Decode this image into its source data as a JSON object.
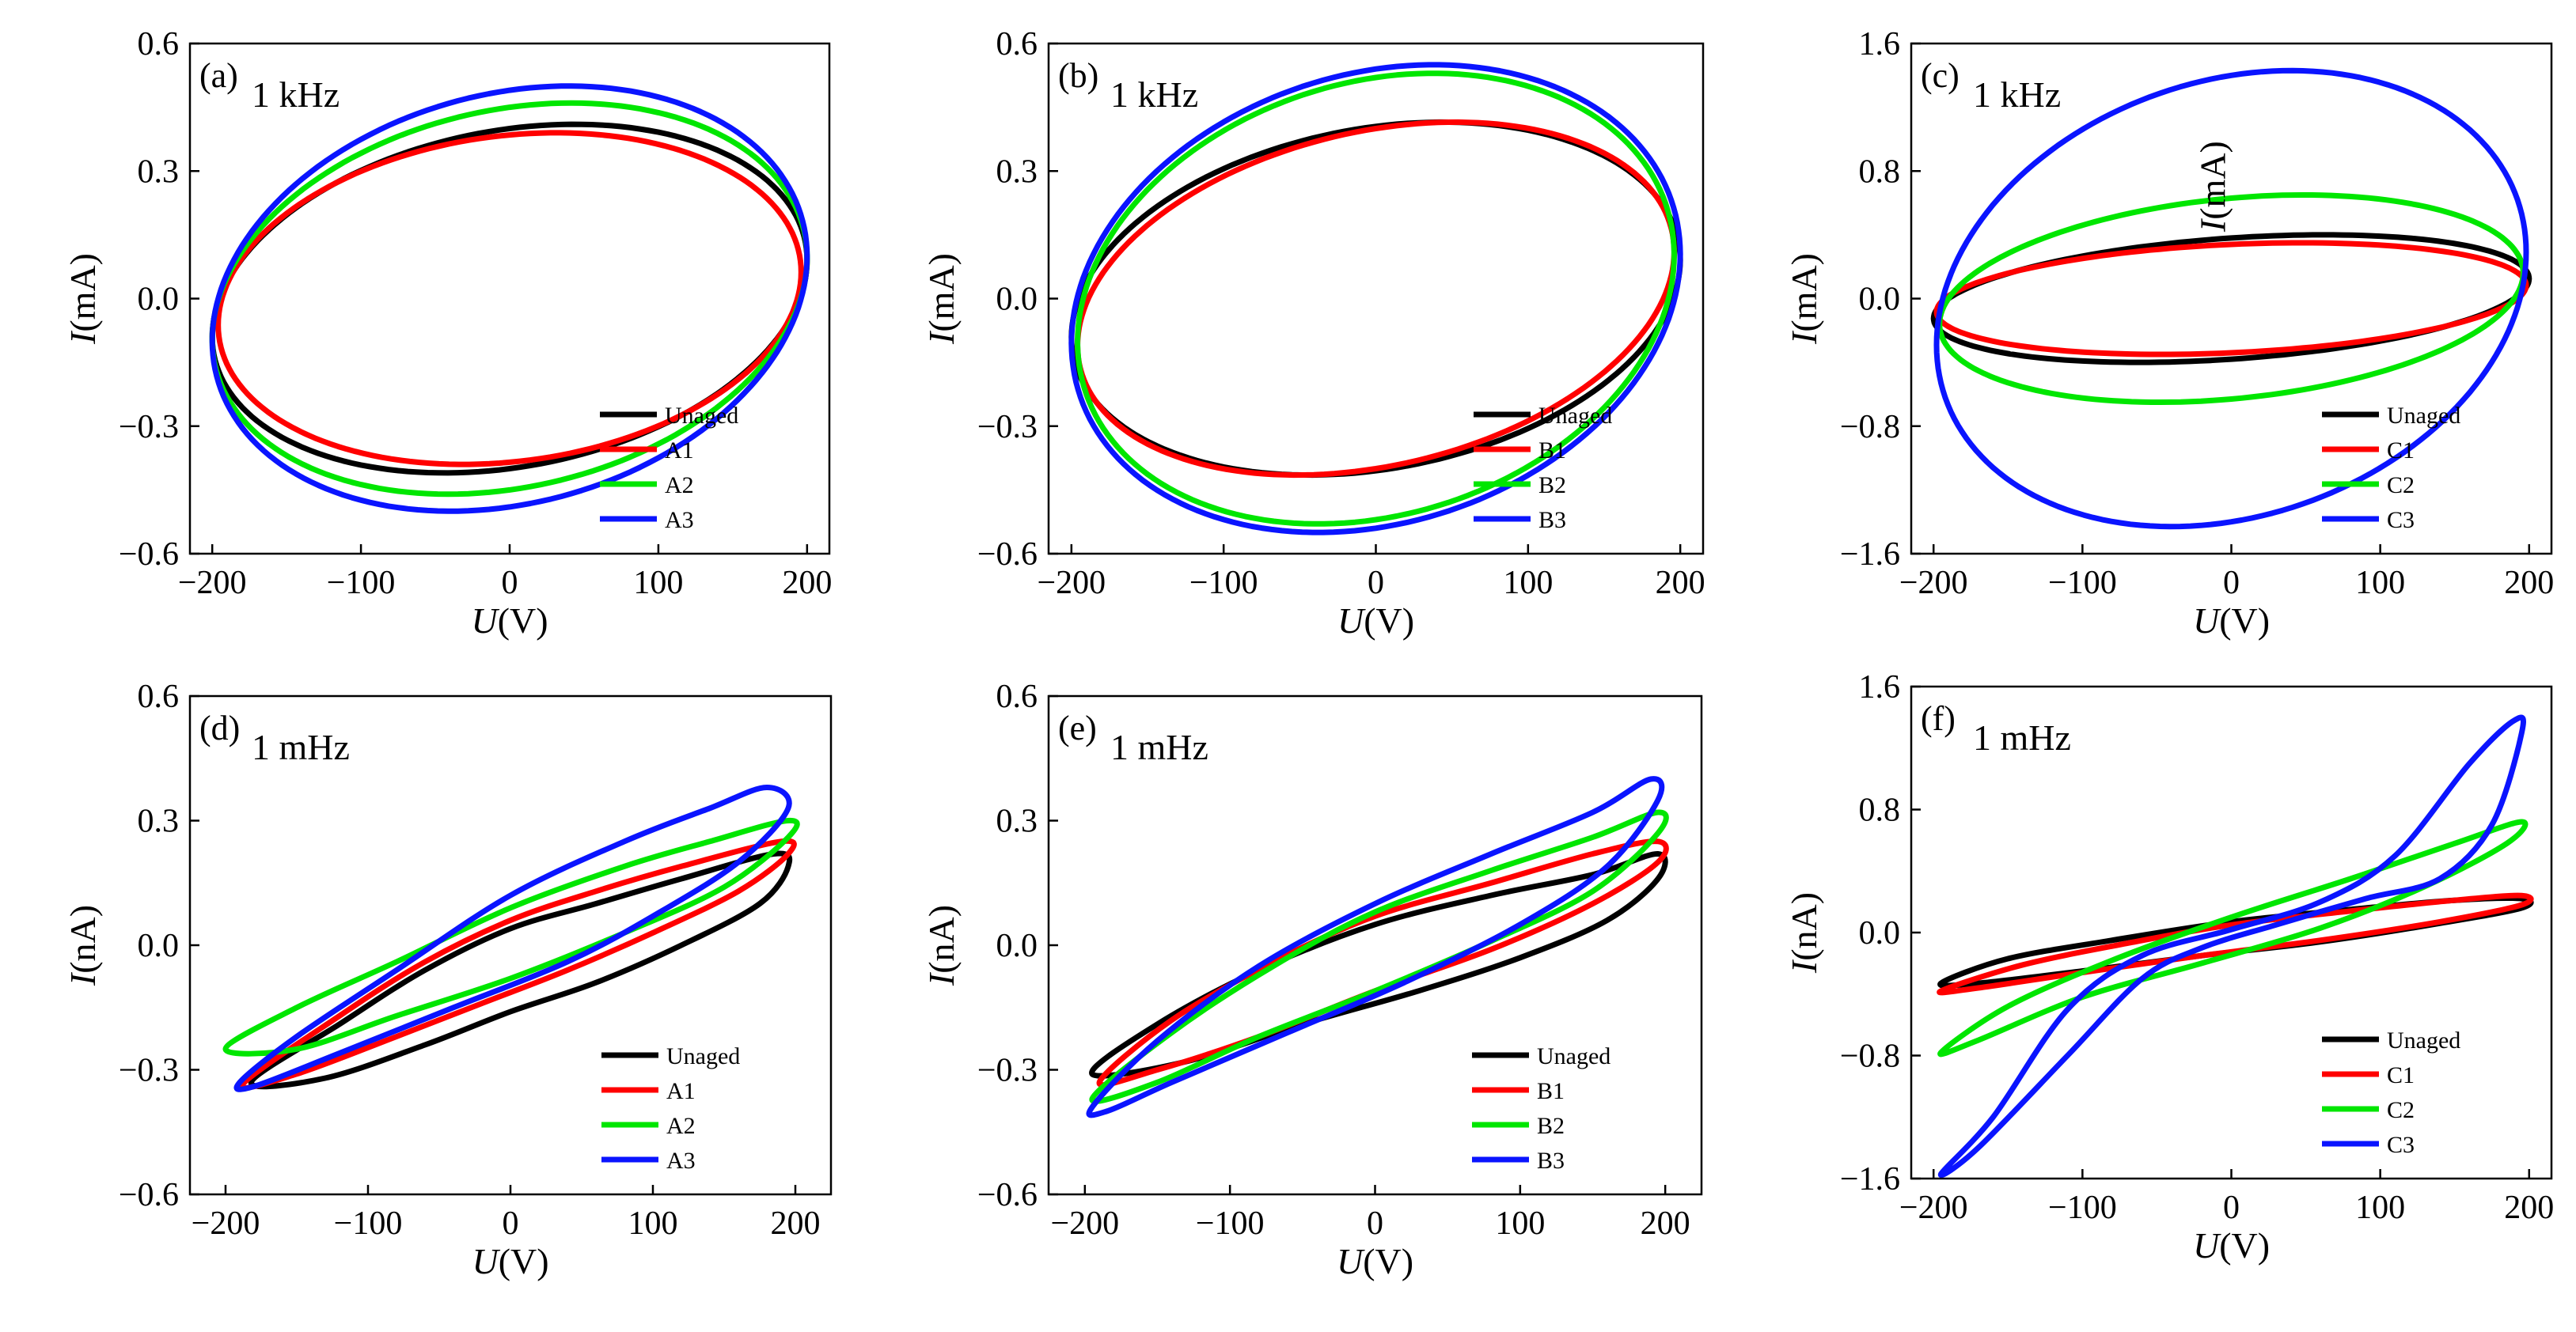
{
  "colors": {
    "Unaged": "#000000",
    "aged1": "#ff0000",
    "aged2": "#00e600",
    "aged3": "#0a14ff"
  },
  "chart_data": [
    {
      "type": "line",
      "panel": "(a)",
      "freq": "1 kHz",
      "xlabel": {
        "var": "U",
        "unit": "(V)"
      },
      "ylabel": {
        "var": "I",
        "unit": "(mA)"
      },
      "xlim": [
        -215,
        215
      ],
      "ylim": [
        -0.6,
        0.6
      ],
      "xticks": [
        -200,
        -100,
        0,
        100,
        200
      ],
      "yticks": [
        0.6,
        0.3,
        0.0,
        -0.3,
        -0.6
      ],
      "xtick_labels": [
        "−200",
        "−100",
        "0",
        "100",
        "200"
      ],
      "ytick_labels": [
        "0.6",
        "0.3",
        "0.0",
        "−0.3",
        "−0.6"
      ],
      "shape": "ellipse",
      "series": [
        {
          "name": "Unaged",
          "amp_v": 200,
          "peak": 0.41,
          "at_zero": 0.4,
          "color_key": "Unaged"
        },
        {
          "name": "A1",
          "amp_v": 196,
          "peak": 0.39,
          "at_zero": 0.385,
          "color_key": "aged1"
        },
        {
          "name": "A2",
          "amp_v": 200,
          "peak": 0.46,
          "at_zero": 0.45,
          "color_key": "aged2"
        },
        {
          "name": "A3",
          "amp_v": 200,
          "peak": 0.5,
          "at_zero": 0.49,
          "color_key": "aged3"
        }
      ]
    },
    {
      "type": "line",
      "panel": "(b)",
      "freq": "1 kHz",
      "xlabel": {
        "var": "U",
        "unit": "(V)"
      },
      "ylabel": {
        "var": "I",
        "unit": "(mA)"
      },
      "xlim": [
        -215,
        215
      ],
      "ylim": [
        -0.6,
        0.6
      ],
      "xticks": [
        -200,
        -100,
        0,
        100,
        200
      ],
      "yticks": [
        0.6,
        0.3,
        0.0,
        -0.3,
        -0.6
      ],
      "xtick_labels": [
        "−200",
        "−100",
        "0",
        "100",
        "200"
      ],
      "ytick_labels": [
        "0.6",
        "0.3",
        "0.0",
        "−0.3",
        "−0.6"
      ],
      "shape": "ellipse",
      "series": [
        {
          "name": "Unaged",
          "amp_v": 200,
          "peak": 0.415,
          "at_zero": 0.405,
          "color_key": "Unaged"
        },
        {
          "name": "B1",
          "amp_v": 196,
          "peak": 0.415,
          "at_zero": 0.4,
          "color_key": "aged1"
        },
        {
          "name": "B2",
          "amp_v": 196,
          "peak": 0.53,
          "at_zero": 0.52,
          "color_key": "aged2"
        },
        {
          "name": "B3",
          "amp_v": 200,
          "peak": 0.55,
          "at_zero": 0.54,
          "color_key": "aged3"
        }
      ]
    },
    {
      "type": "line",
      "panel": "(c)",
      "freq": "1 kHz",
      "xlabel": {
        "var": "U",
        "unit": "(V)"
      },
      "ylabel": {
        "var": "I",
        "unit": "(mA)"
      },
      "inner_label": {
        "var": "I",
        "unit": "(mA)"
      },
      "xlim": [
        -215,
        215
      ],
      "ylim": [
        -1.6,
        1.6
      ],
      "xticks": [
        -200,
        -100,
        0,
        100,
        200
      ],
      "yticks": [
        1.6,
        0.8,
        0.0,
        -0.8,
        -1.6
      ],
      "xtick_labels": [
        "−200",
        "−100",
        "0",
        "100",
        "200"
      ],
      "ytick_labels": [
        "1.6",
        "0.8",
        "0.0",
        "−0.8",
        "−1.6"
      ],
      "shape": "ellipse",
      "series": [
        {
          "name": "Unaged",
          "amp_v": 200,
          "peak": 0.4,
          "at_zero": 0.38,
          "color_key": "Unaged"
        },
        {
          "name": "C1",
          "amp_v": 198,
          "peak": 0.35,
          "at_zero": 0.34,
          "color_key": "aged1"
        },
        {
          "name": "C2",
          "amp_v": 196,
          "peak": 0.65,
          "at_zero": 0.63,
          "color_key": "aged2"
        },
        {
          "name": "C3",
          "amp_v": 198,
          "peak": 1.43,
          "at_zero": 1.4,
          "color_key": "aged3"
        }
      ]
    },
    {
      "type": "line",
      "panel": "(d)",
      "freq": "1 mHz",
      "xlabel": {
        "var": "U",
        "unit": "(V)"
      },
      "ylabel": {
        "var": "I",
        "unit": "(nA)"
      },
      "xlim": [
        -225,
        225
      ],
      "ylim": [
        -0.6,
        0.6
      ],
      "xticks": [
        -200,
        -100,
        0,
        100,
        200
      ],
      "yticks": [
        0.6,
        0.3,
        0.0,
        -0.3,
        -0.6
      ],
      "xtick_labels": [
        "−200",
        "−100",
        "0",
        "100",
        "200"
      ],
      "ytick_labels": [
        "0.6",
        "0.3",
        "0.0",
        "−0.3",
        "−0.6"
      ],
      "shape": "loop",
      "series": [
        {
          "name": "Unaged",
          "points": [
            [
              -182,
              -0.33
            ],
            [
              -120,
              -0.19
            ],
            [
              -60,
              -0.06
            ],
            [
              0,
              0.04
            ],
            [
              60,
              0.1
            ],
            [
              120,
              0.16
            ],
            [
              185,
              0.22
            ],
            [
              195,
              0.19
            ],
            [
              175,
              0.1
            ],
            [
              120,
              0.0
            ],
            [
              60,
              -0.09
            ],
            [
              0,
              -0.16
            ],
            [
              -60,
              -0.24
            ],
            [
              -130,
              -0.32
            ],
            [
              -182,
              -0.33
            ]
          ],
          "color_key": "Unaged"
        },
        {
          "name": "A1",
          "points": [
            [
              -188,
              -0.335
            ],
            [
              -120,
              -0.17
            ],
            [
              -60,
              -0.04
            ],
            [
              0,
              0.06
            ],
            [
              60,
              0.13
            ],
            [
              120,
              0.19
            ],
            [
              190,
              0.25
            ],
            [
              195,
              0.22
            ],
            [
              160,
              0.13
            ],
            [
              100,
              0.03
            ],
            [
              40,
              -0.06
            ],
            [
              -20,
              -0.14
            ],
            [
              -80,
              -0.22
            ],
            [
              -150,
              -0.31
            ],
            [
              -188,
              -0.335
            ]
          ],
          "color_key": "aged1"
        },
        {
          "name": "A2",
          "points": [
            [
              -200,
              -0.25
            ],
            [
              -150,
              -0.15
            ],
            [
              -80,
              -0.04
            ],
            [
              0,
              0.09
            ],
            [
              80,
              0.19
            ],
            [
              140,
              0.25
            ],
            [
              195,
              0.3
            ],
            [
              195,
              0.26
            ],
            [
              150,
              0.14
            ],
            [
              80,
              0.03
            ],
            [
              0,
              -0.08
            ],
            [
              -80,
              -0.17
            ],
            [
              -150,
              -0.25
            ],
            [
              -200,
              -0.25
            ]
          ],
          "color_key": "aged2"
        },
        {
          "name": "A3",
          "points": [
            [
              -190,
              -0.33
            ],
            [
              -150,
              -0.22
            ],
            [
              -80,
              -0.06
            ],
            [
              0,
              0.12
            ],
            [
              80,
              0.25
            ],
            [
              140,
              0.33
            ],
            [
              180,
              0.38
            ],
            [
              195,
              0.33
            ],
            [
              160,
              0.2
            ],
            [
              100,
              0.07
            ],
            [
              40,
              -0.04
            ],
            [
              -40,
              -0.15
            ],
            [
              -120,
              -0.26
            ],
            [
              -180,
              -0.34
            ],
            [
              -190,
              -0.33
            ]
          ],
          "color_key": "aged3"
        }
      ]
    },
    {
      "type": "line",
      "panel": "(e)",
      "freq": "1 mHz",
      "xlabel": {
        "var": "U",
        "unit": "(V)"
      },
      "ylabel": {
        "var": "I",
        "unit": "(nA)"
      },
      "xlim": [
        -225,
        225
      ],
      "ylim": [
        -0.6,
        0.6
      ],
      "xticks": [
        -200,
        -100,
        0,
        100,
        200
      ],
      "yticks": [
        0.6,
        0.3,
        0.0,
        -0.3,
        -0.6
      ],
      "xtick_labels": [
        "−200",
        "−100",
        "0",
        "100",
        "200"
      ],
      "ytick_labels": [
        "0.6",
        "0.3",
        "0.0",
        "−0.3",
        "−0.6"
      ],
      "shape": "loop",
      "series": [
        {
          "name": "Unaged",
          "points": [
            [
              -195,
              -0.31
            ],
            [
              -150,
              -0.19
            ],
            [
              -80,
              -0.06
            ],
            [
              0,
              0.05
            ],
            [
              80,
              0.12
            ],
            [
              150,
              0.17
            ],
            [
              195,
              0.22
            ],
            [
              195,
              0.16
            ],
            [
              160,
              0.06
            ],
            [
              100,
              -0.03
            ],
            [
              30,
              -0.11
            ],
            [
              -50,
              -0.19
            ],
            [
              -130,
              -0.28
            ],
            [
              -195,
              -0.31
            ]
          ],
          "color_key": "Unaged"
        },
        {
          "name": "B1",
          "points": [
            [
              -190,
              -0.33
            ],
            [
              -140,
              -0.18
            ],
            [
              -70,
              -0.04
            ],
            [
              0,
              0.07
            ],
            [
              80,
              0.15
            ],
            [
              150,
              0.22
            ],
            [
              195,
              0.25
            ],
            [
              195,
              0.2
            ],
            [
              150,
              0.1
            ],
            [
              80,
              -0.01
            ],
            [
              0,
              -0.11
            ],
            [
              -80,
              -0.22
            ],
            [
              -150,
              -0.3
            ],
            [
              -190,
              -0.33
            ]
          ],
          "color_key": "aged1"
        },
        {
          "name": "B2",
          "points": [
            [
              -195,
              -0.37
            ],
            [
              -140,
              -0.21
            ],
            [
              -70,
              -0.05
            ],
            [
              0,
              0.08
            ],
            [
              80,
              0.18
            ],
            [
              150,
              0.26
            ],
            [
              195,
              0.32
            ],
            [
              195,
              0.27
            ],
            [
              150,
              0.13
            ],
            [
              80,
              0.01
            ],
            [
              0,
              -0.11
            ],
            [
              -80,
              -0.22
            ],
            [
              -150,
              -0.33
            ],
            [
              -195,
              -0.37
            ]
          ],
          "color_key": "aged2"
        },
        {
          "name": "B3",
          "points": [
            [
              -195,
              -0.39
            ],
            [
              -150,
              -0.23
            ],
            [
              -80,
              -0.05
            ],
            [
              0,
              0.1
            ],
            [
              80,
              0.22
            ],
            [
              150,
              0.32
            ],
            [
              190,
              0.4
            ],
            [
              195,
              0.35
            ],
            [
              160,
              0.19
            ],
            [
              100,
              0.05
            ],
            [
              20,
              -0.09
            ],
            [
              -60,
              -0.21
            ],
            [
              -140,
              -0.33
            ],
            [
              -185,
              -0.4
            ],
            [
              -195,
              -0.39
            ]
          ],
          "color_key": "aged3"
        }
      ]
    },
    {
      "type": "line",
      "panel": "(f)",
      "freq": "1 mHz",
      "xlabel": {
        "var": "U",
        "unit": "(V)"
      },
      "ylabel": {
        "var": "I",
        "unit": "(nA)"
      },
      "xlim": [
        -215,
        215
      ],
      "ylim": [
        -1.6,
        1.6
      ],
      "xticks": [
        -200,
        -100,
        0,
        100,
        200
      ],
      "yticks": [
        1.6,
        0.8,
        0.0,
        -0.8,
        -1.6
      ],
      "xtick_labels": [
        "−200",
        "−100",
        "0",
        "100",
        "200"
      ],
      "ytick_labels": [
        "1.6",
        "0.8",
        "0.0",
        "−0.8",
        "−1.6"
      ],
      "shape": "loop",
      "series": [
        {
          "name": "Unaged",
          "points": [
            [
              -195,
              -0.33
            ],
            [
              -150,
              -0.17
            ],
            [
              -80,
              -0.05
            ],
            [
              0,
              0.07
            ],
            [
              80,
              0.15
            ],
            [
              150,
              0.21
            ],
            [
              195,
              0.22
            ],
            [
              195,
              0.16
            ],
            [
              140,
              0.06
            ],
            [
              60,
              -0.06
            ],
            [
              -20,
              -0.15
            ],
            [
              -100,
              -0.25
            ],
            [
              -170,
              -0.33
            ],
            [
              -195,
              -0.33
            ]
          ],
          "color_key": "Unaged"
        },
        {
          "name": "C1",
          "points": [
            [
              -195,
              -0.38
            ],
            [
              -140,
              -0.21
            ],
            [
              -70,
              -0.07
            ],
            [
              0,
              0.05
            ],
            [
              80,
              0.14
            ],
            [
              150,
              0.21
            ],
            [
              195,
              0.24
            ],
            [
              195,
              0.18
            ],
            [
              140,
              0.07
            ],
            [
              60,
              -0.05
            ],
            [
              -20,
              -0.15
            ],
            [
              -100,
              -0.26
            ],
            [
              -170,
              -0.36
            ],
            [
              -195,
              -0.38
            ]
          ],
          "color_key": "aged1"
        },
        {
          "name": "C2",
          "points": [
            [
              -195,
              -0.78
            ],
            [
              -150,
              -0.48
            ],
            [
              -80,
              -0.18
            ],
            [
              0,
              0.1
            ],
            [
              80,
              0.35
            ],
            [
              150,
              0.58
            ],
            [
              195,
              0.72
            ],
            [
              185,
              0.58
            ],
            [
              130,
              0.3
            ],
            [
              60,
              0.03
            ],
            [
              -20,
              -0.2
            ],
            [
              -100,
              -0.42
            ],
            [
              -170,
              -0.7
            ],
            [
              -195,
              -0.78
            ]
          ],
          "color_key": "aged2"
        },
        {
          "name": "C3",
          "points": [
            [
              -195,
              -1.57
            ],
            [
              -160,
              -1.2
            ],
            [
              -110,
              -0.5
            ],
            [
              -60,
              -0.15
            ],
            [
              0,
              0.02
            ],
            [
              60,
              0.2
            ],
            [
              110,
              0.5
            ],
            [
              160,
              1.1
            ],
            [
              190,
              1.38
            ],
            [
              195,
              1.3
            ],
            [
              175,
              0.7
            ],
            [
              140,
              0.35
            ],
            [
              90,
              0.22
            ],
            [
              30,
              0.05
            ],
            [
              -20,
              -0.1
            ],
            [
              -60,
              -0.3
            ],
            [
              -110,
              -0.8
            ],
            [
              -170,
              -1.4
            ],
            [
              -195,
              -1.57
            ]
          ],
          "color_key": "aged3"
        }
      ]
    }
  ]
}
